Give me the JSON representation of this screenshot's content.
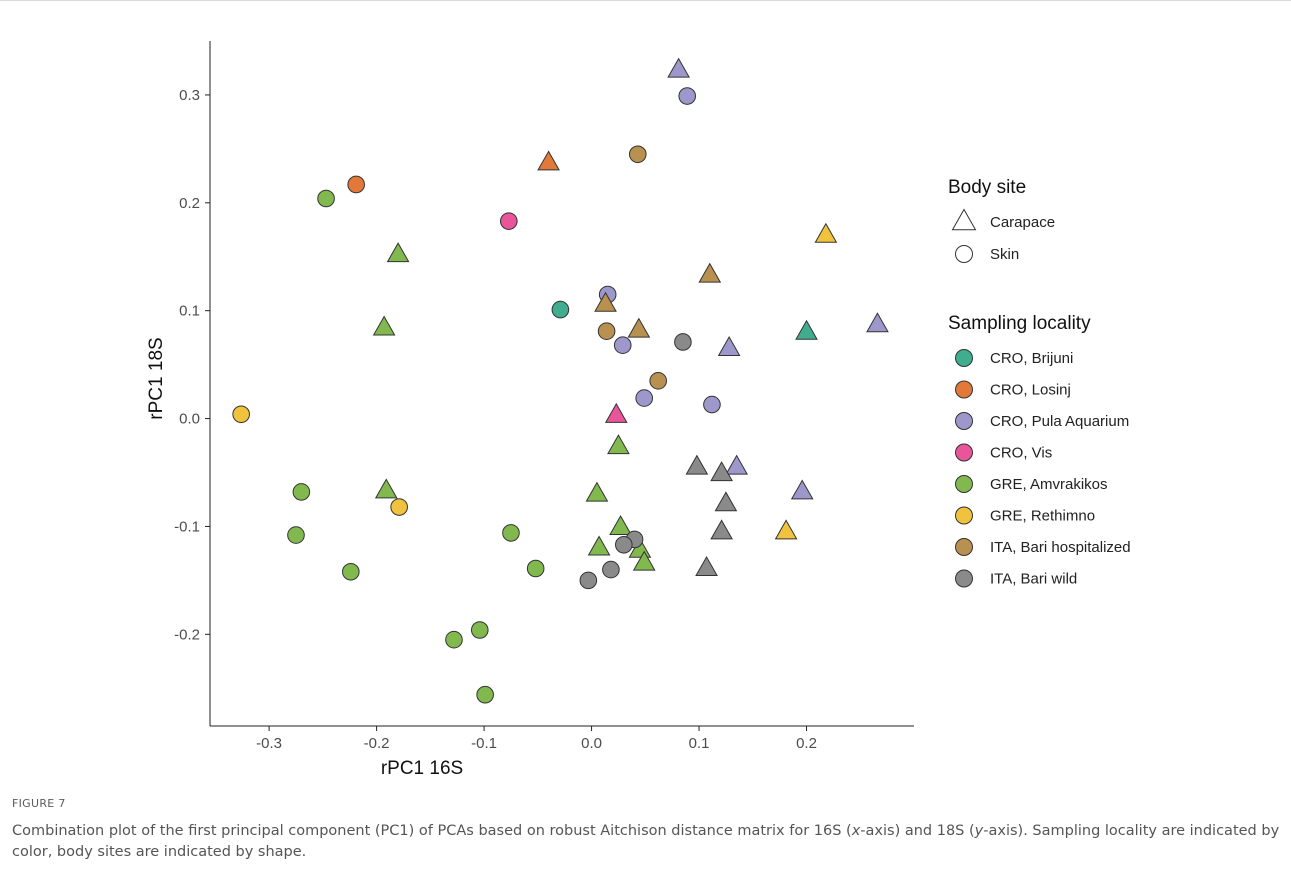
{
  "chart_data": {
    "type": "scatter",
    "xlabel": "rPC1 16S",
    "ylabel": "rPC1 18S",
    "xlim": [
      -0.355,
      0.3
    ],
    "ylim": [
      -0.285,
      0.35
    ],
    "x_ticks": [
      -0.3,
      -0.2,
      -0.1,
      0.0,
      0.1,
      0.2
    ],
    "x_tick_labels": [
      "-0.3",
      "-0.2",
      "-0.1",
      "0.0",
      "0.1",
      "0.2"
    ],
    "y_ticks": [
      -0.2,
      -0.1,
      0.0,
      0.1,
      0.2,
      0.3
    ],
    "y_tick_labels": [
      "-0.2",
      "-0.1",
      "0.0",
      "0.1",
      "0.2",
      "0.3"
    ],
    "grid": false,
    "legend_placement": "right",
    "shape_legend": {
      "title": "Body site",
      "items": [
        {
          "label": "Carapace",
          "shape": "triangle"
        },
        {
          "label": "Skin",
          "shape": "circle"
        }
      ]
    },
    "color_legend": {
      "title": "Sampling locality",
      "items": [
        {
          "label": "CRO, Brijuni",
          "color": "#3fad8e"
        },
        {
          "label": "CRO, Losinj",
          "color": "#e2793a"
        },
        {
          "label": "CRO, Pula Aquarium",
          "color": "#9d97cc"
        },
        {
          "label": "CRO, Vis",
          "color": "#e8559a"
        },
        {
          "label": "GRE, Amvrakikos",
          "color": "#82b94f"
        },
        {
          "label": "GRE, Rethimno",
          "color": "#f0c23e"
        },
        {
          "label": "ITA, Bari hospitalized",
          "color": "#b89050"
        },
        {
          "label": "ITA, Bari wild",
          "color": "#8a8a8a"
        }
      ]
    },
    "points": [
      {
        "x": -0.029,
        "y": 0.101,
        "shape": "circle",
        "group": "CRO, Brijuni"
      },
      {
        "x": 0.2,
        "y": 0.08,
        "shape": "triangle",
        "group": "CRO, Brijuni"
      },
      {
        "x": -0.219,
        "y": 0.217,
        "shape": "circle",
        "group": "CRO, Losinj"
      },
      {
        "x": -0.04,
        "y": 0.237,
        "shape": "triangle",
        "group": "CRO, Losinj"
      },
      {
        "x": 0.081,
        "y": 0.323,
        "shape": "triangle",
        "group": "CRO, Pula Aquarium"
      },
      {
        "x": 0.089,
        "y": 0.299,
        "shape": "circle",
        "group": "CRO, Pula Aquarium"
      },
      {
        "x": 0.015,
        "y": 0.115,
        "shape": "circle",
        "group": "CRO, Pula Aquarium"
      },
      {
        "x": 0.029,
        "y": 0.068,
        "shape": "circle",
        "group": "CRO, Pula Aquarium"
      },
      {
        "x": 0.128,
        "y": 0.065,
        "shape": "triangle",
        "group": "CRO, Pula Aquarium"
      },
      {
        "x": 0.266,
        "y": 0.087,
        "shape": "triangle",
        "group": "CRO, Pula Aquarium"
      },
      {
        "x": 0.049,
        "y": 0.019,
        "shape": "circle",
        "group": "CRO, Pula Aquarium"
      },
      {
        "x": 0.112,
        "y": 0.013,
        "shape": "circle",
        "group": "CRO, Pula Aquarium"
      },
      {
        "x": 0.135,
        "y": -0.045,
        "shape": "triangle",
        "group": "CRO, Pula Aquarium"
      },
      {
        "x": 0.196,
        "y": -0.068,
        "shape": "triangle",
        "group": "CRO, Pula Aquarium"
      },
      {
        "x": -0.077,
        "y": 0.183,
        "shape": "circle",
        "group": "CRO, Vis"
      },
      {
        "x": 0.023,
        "y": 0.003,
        "shape": "triangle",
        "group": "CRO, Vis"
      },
      {
        "x": -0.247,
        "y": 0.204,
        "shape": "circle",
        "group": "GRE, Amvrakikos"
      },
      {
        "x": -0.18,
        "y": 0.152,
        "shape": "triangle",
        "group": "GRE, Amvrakikos"
      },
      {
        "x": -0.193,
        "y": 0.084,
        "shape": "triangle",
        "group": "GRE, Amvrakikos"
      },
      {
        "x": 0.025,
        "y": -0.026,
        "shape": "triangle",
        "group": "GRE, Amvrakikos"
      },
      {
        "x": -0.191,
        "y": -0.067,
        "shape": "triangle",
        "group": "GRE, Amvrakikos"
      },
      {
        "x": -0.27,
        "y": -0.068,
        "shape": "circle",
        "group": "GRE, Amvrakikos"
      },
      {
        "x": 0.005,
        "y": -0.07,
        "shape": "triangle",
        "group": "GRE, Amvrakikos"
      },
      {
        "x": 0.027,
        "y": -0.101,
        "shape": "triangle",
        "group": "GRE, Amvrakikos"
      },
      {
        "x": -0.075,
        "y": -0.106,
        "shape": "circle",
        "group": "GRE, Amvrakikos"
      },
      {
        "x": -0.275,
        "y": -0.108,
        "shape": "circle",
        "group": "GRE, Amvrakikos"
      },
      {
        "x": 0.007,
        "y": -0.12,
        "shape": "triangle",
        "group": "GRE, Amvrakikos"
      },
      {
        "x": 0.045,
        "y": -0.122,
        "shape": "triangle",
        "group": "GRE, Amvrakikos"
      },
      {
        "x": 0.049,
        "y": -0.134,
        "shape": "triangle",
        "group": "GRE, Amvrakikos"
      },
      {
        "x": -0.052,
        "y": -0.139,
        "shape": "circle",
        "group": "GRE, Amvrakikos"
      },
      {
        "x": -0.224,
        "y": -0.142,
        "shape": "circle",
        "group": "GRE, Amvrakikos"
      },
      {
        "x": -0.104,
        "y": -0.196,
        "shape": "circle",
        "group": "GRE, Amvrakikos"
      },
      {
        "x": -0.128,
        "y": -0.205,
        "shape": "circle",
        "group": "GRE, Amvrakikos"
      },
      {
        "x": -0.099,
        "y": -0.256,
        "shape": "circle",
        "group": "GRE, Amvrakikos"
      },
      {
        "x": -0.326,
        "y": 0.004,
        "shape": "circle",
        "group": "GRE, Rethimno"
      },
      {
        "x": -0.179,
        "y": -0.082,
        "shape": "circle",
        "group": "GRE, Rethimno"
      },
      {
        "x": 0.218,
        "y": 0.17,
        "shape": "triangle",
        "group": "GRE, Rethimno"
      },
      {
        "x": 0.181,
        "y": -0.105,
        "shape": "triangle",
        "group": "GRE, Rethimno"
      },
      {
        "x": 0.043,
        "y": 0.245,
        "shape": "circle",
        "group": "ITA, Bari hospitalized"
      },
      {
        "x": 0.11,
        "y": 0.133,
        "shape": "triangle",
        "group": "ITA, Bari hospitalized"
      },
      {
        "x": 0.013,
        "y": 0.106,
        "shape": "triangle",
        "group": "ITA, Bari hospitalized"
      },
      {
        "x": 0.014,
        "y": 0.081,
        "shape": "circle",
        "group": "ITA, Bari hospitalized"
      },
      {
        "x": 0.044,
        "y": 0.082,
        "shape": "triangle",
        "group": "ITA, Bari hospitalized"
      },
      {
        "x": 0.062,
        "y": 0.035,
        "shape": "circle",
        "group": "ITA, Bari hospitalized"
      },
      {
        "x": 0.085,
        "y": 0.071,
        "shape": "circle",
        "group": "ITA, Bari wild"
      },
      {
        "x": 0.098,
        "y": -0.045,
        "shape": "triangle",
        "group": "ITA, Bari wild"
      },
      {
        "x": 0.121,
        "y": -0.051,
        "shape": "triangle",
        "group": "ITA, Bari wild"
      },
      {
        "x": 0.125,
        "y": -0.079,
        "shape": "triangle",
        "group": "ITA, Bari wild"
      },
      {
        "x": 0.121,
        "y": -0.105,
        "shape": "triangle",
        "group": "ITA, Bari wild"
      },
      {
        "x": 0.107,
        "y": -0.139,
        "shape": "triangle",
        "group": "ITA, Bari wild"
      },
      {
        "x": 0.04,
        "y": -0.112,
        "shape": "circle",
        "group": "ITA, Bari wild"
      },
      {
        "x": 0.03,
        "y": -0.117,
        "shape": "circle",
        "group": "ITA, Bari wild"
      },
      {
        "x": 0.018,
        "y": -0.14,
        "shape": "circle",
        "group": "ITA, Bari wild"
      },
      {
        "x": -0.003,
        "y": -0.15,
        "shape": "circle",
        "group": "ITA, Bari wild"
      }
    ]
  },
  "caption": {
    "label": "FIGURE 7",
    "text_before_x": "Combination plot of the first principal component (PC1) of PCAs based on robust Aitchison distance matrix for 16S (",
    "x_italic": "x",
    "text_between": "-axis) and 18S (",
    "y_italic": "y",
    "text_after_y": "-axis). Sampling locality are indicated by color, body sites are indicated by shape."
  }
}
